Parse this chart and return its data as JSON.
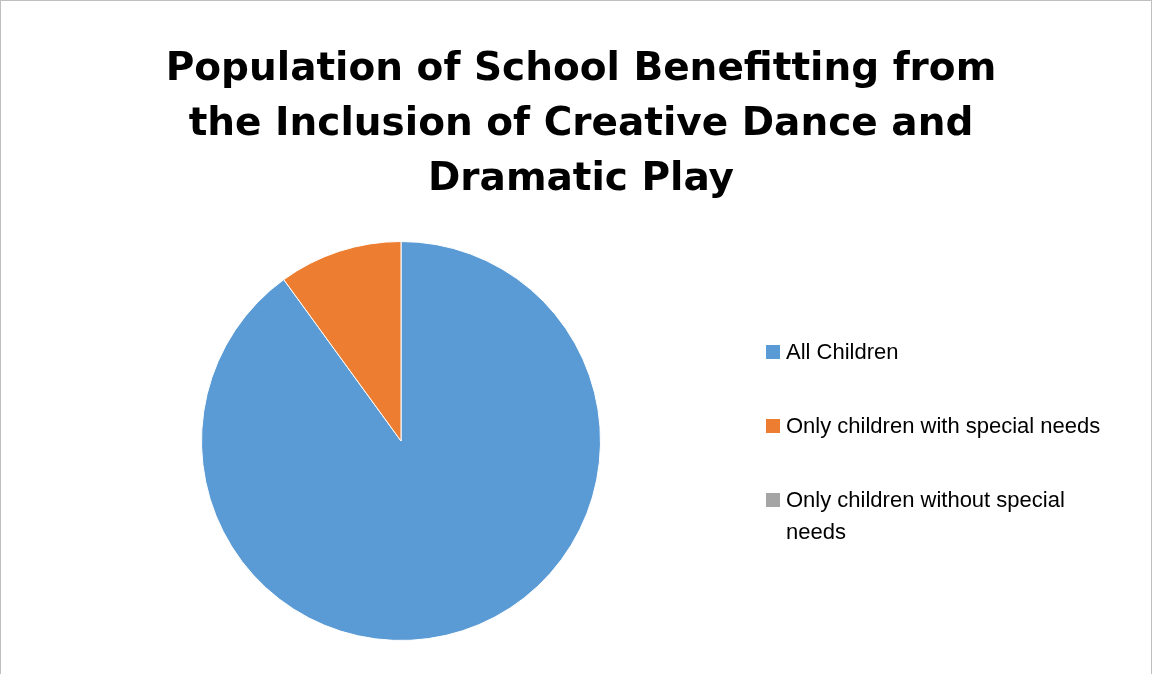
{
  "chart_data": {
    "type": "pie",
    "title": "Population of School Benefitting from the Inclusion of Creative Dance and Dramatic Play",
    "categories": [
      "All Children",
      "Only children with special needs",
      "Only children without special needs"
    ],
    "values": [
      90,
      10,
      0
    ],
    "colors": [
      "#5b9bd5",
      "#ed7d31",
      "#a5a5a5"
    ],
    "legend": "right"
  }
}
